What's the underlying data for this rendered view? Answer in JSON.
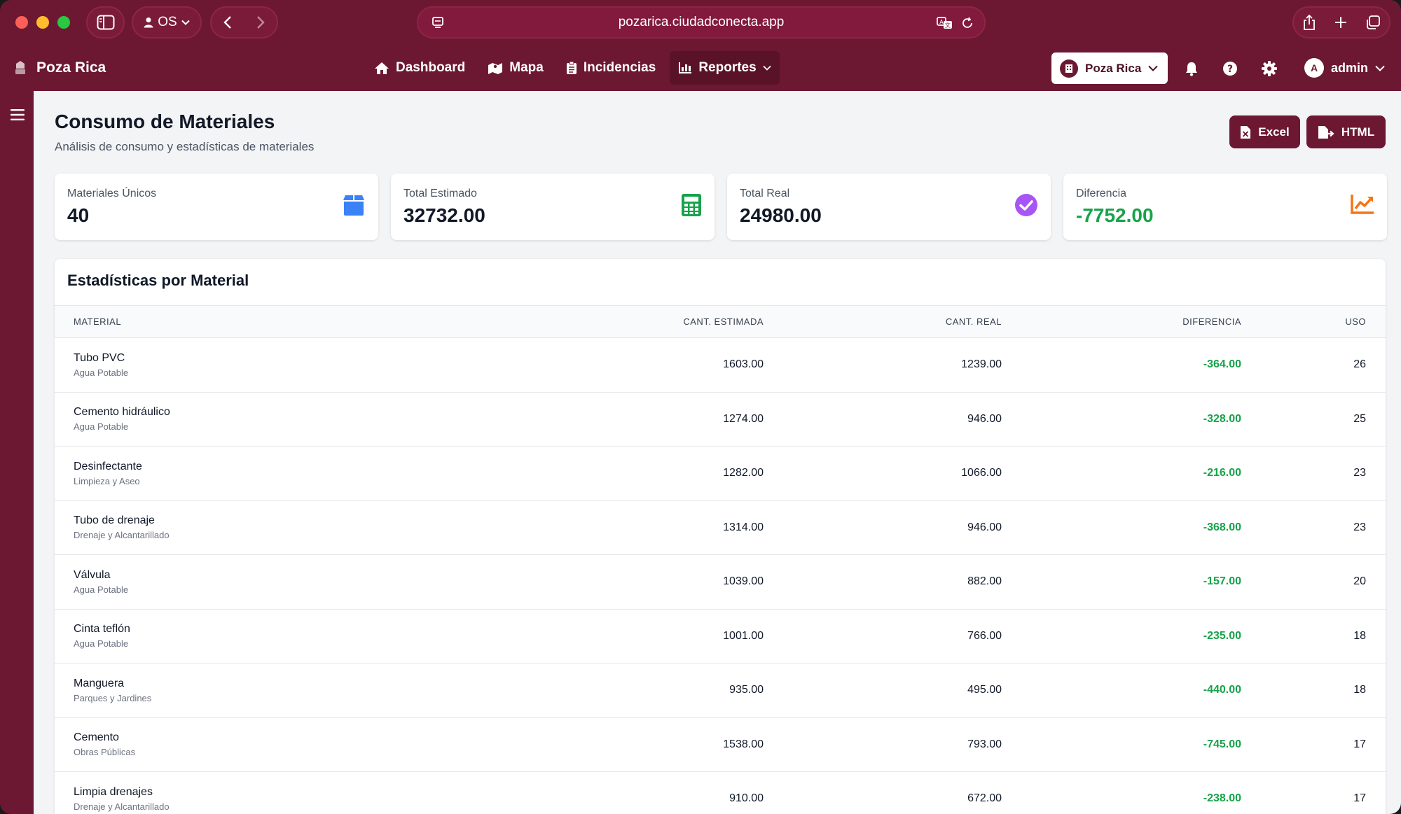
{
  "browser": {
    "profile_label": "OS",
    "url": "pozarica.ciudadconecta.app"
  },
  "app": {
    "brand": "Poza Rica",
    "nav": [
      {
        "label": "Dashboard",
        "icon": "home-icon"
      },
      {
        "label": "Mapa",
        "icon": "map-icon"
      },
      {
        "label": "Incidencias",
        "icon": "clipboard-icon"
      },
      {
        "label": "Reportes",
        "icon": "chart-icon",
        "active": true
      }
    ],
    "city_select": "Poza Rica",
    "user": {
      "initial": "A",
      "name": "admin"
    }
  },
  "page": {
    "title": "Consumo de Materiales",
    "subtitle": "Análisis de consumo y estadísticas de materiales",
    "buttons": {
      "excel": "Excel",
      "html": "HTML"
    }
  },
  "stats": [
    {
      "label": "Materiales Únicos",
      "value": "40",
      "icon": "box-icon",
      "color": "#3b82f6"
    },
    {
      "label": "Total Estimado",
      "value": "32732.00",
      "icon": "calculator-icon",
      "color": "#16a34a"
    },
    {
      "label": "Total Real",
      "value": "24980.00",
      "icon": "check-circle-icon",
      "color": "#a855f7"
    },
    {
      "label": "Diferencia",
      "value": "-7752.00",
      "icon": "trend-chart-icon",
      "color": "#f97316"
    }
  ],
  "table": {
    "title": "Estadísticas por Material",
    "headers": {
      "material": "MATERIAL",
      "estimada": "CANT. ESTIMADA",
      "real": "CANT. REAL",
      "diferencia": "DIFERENCIA",
      "uso": "USO"
    },
    "rows": [
      {
        "name": "Tubo PVC",
        "category": "Agua Potable",
        "estimada": "1603.00",
        "real": "1239.00",
        "diferencia": "-364.00",
        "uso": "26"
      },
      {
        "name": "Cemento hidráulico",
        "category": "Agua Potable",
        "estimada": "1274.00",
        "real": "946.00",
        "diferencia": "-328.00",
        "uso": "25"
      },
      {
        "name": "Desinfectante",
        "category": "Limpieza y Aseo",
        "estimada": "1282.00",
        "real": "1066.00",
        "diferencia": "-216.00",
        "uso": "23"
      },
      {
        "name": "Tubo de drenaje",
        "category": "Drenaje y Alcantarillado",
        "estimada": "1314.00",
        "real": "946.00",
        "diferencia": "-368.00",
        "uso": "23"
      },
      {
        "name": "Válvula",
        "category": "Agua Potable",
        "estimada": "1039.00",
        "real": "882.00",
        "diferencia": "-157.00",
        "uso": "20"
      },
      {
        "name": "Cinta teflón",
        "category": "Agua Potable",
        "estimada": "1001.00",
        "real": "766.00",
        "diferencia": "-235.00",
        "uso": "18"
      },
      {
        "name": "Manguera",
        "category": "Parques y Jardines",
        "estimada": "935.00",
        "real": "495.00",
        "diferencia": "-440.00",
        "uso": "18"
      },
      {
        "name": "Cemento",
        "category": "Obras Públicas",
        "estimada": "1538.00",
        "real": "793.00",
        "diferencia": "-745.00",
        "uso": "17"
      },
      {
        "name": "Limpia drenajes",
        "category": "Drenaje y Alcantarillado",
        "estimada": "910.00",
        "real": "672.00",
        "diferencia": "-238.00",
        "uso": "17"
      }
    ]
  }
}
